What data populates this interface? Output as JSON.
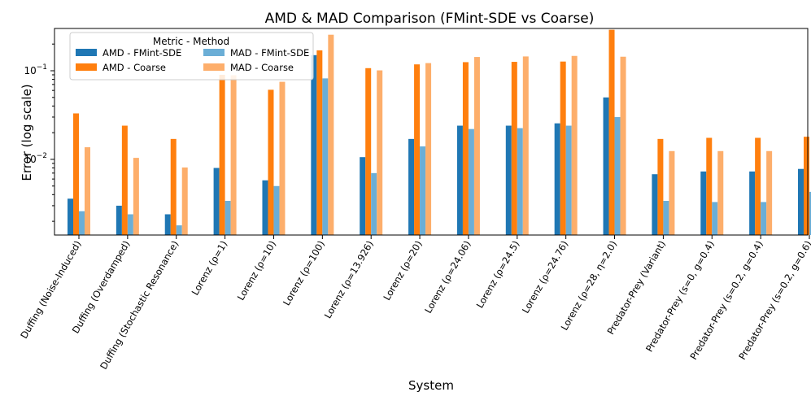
{
  "chart_data": {
    "type": "bar",
    "title": "AMD & MAD Comparison (FMint-SDE vs Coarse)",
    "xlabel": "System",
    "ylabel": "Error (log scale)",
    "yscale": "log",
    "ylim": [
      0.0014,
      0.3
    ],
    "grid": false,
    "legend": {
      "title": "Metric - Method",
      "position": "top-left",
      "columns": 2
    },
    "y_ticks": [
      {
        "value": 0.01,
        "base": "10",
        "exp": "−2"
      },
      {
        "value": 0.1,
        "base": "10",
        "exp": "−1"
      }
    ],
    "categories": [
      "Duffing (Noise-Induced)",
      "Duffing (Overdamped)",
      "Duffing (Stochastic Resonance)",
      "Lorenz (ρ=1)",
      "Lorenz (ρ=10)",
      "Lorenz (ρ=100)",
      "Lorenz (ρ=13.926)",
      "Lorenz (ρ=20)",
      "Lorenz (ρ=24.06)",
      "Lorenz (ρ=24.5)",
      "Lorenz (ρ=24.76)",
      "Lorenz (ρ=28, η=2.0)",
      "Predator-Prey (Variant)",
      "Predator-Prey (s=0, g=0.4)",
      "Predator-Prey (s=0.2, g=0.4)",
      "Predator-Prey (s=0.2, g=0.6)"
    ],
    "series": [
      {
        "name": "AMD - FMint-SDE",
        "color": "#1f77b4",
        "values": [
          0.0036,
          0.003,
          0.0024,
          0.008,
          0.0058,
          0.15,
          0.0106,
          0.017,
          0.024,
          0.024,
          0.0255,
          0.05,
          0.0068,
          0.0073,
          0.0073,
          0.0078
        ]
      },
      {
        "name": "AMD - Coarse",
        "color": "#ff7f0e",
        "values": [
          0.033,
          0.024,
          0.017,
          0.09,
          0.061,
          0.17,
          0.107,
          0.118,
          0.125,
          0.126,
          0.127,
          0.29,
          0.017,
          0.0175,
          0.0175,
          0.018
        ]
      },
      {
        "name": "MAD - FMint-SDE",
        "color": "#6baed6",
        "values": [
          0.0026,
          0.0024,
          0.0018,
          0.0034,
          0.005,
          0.082,
          0.007,
          0.014,
          0.022,
          0.0225,
          0.024,
          0.03,
          0.0034,
          0.0033,
          0.0033,
          0.0043
        ]
      },
      {
        "name": "MAD - Coarse",
        "color": "#fdae6b",
        "values": [
          0.0137,
          0.0104,
          0.0081,
          0.089,
          0.075,
          0.255,
          0.101,
          0.122,
          0.143,
          0.145,
          0.147,
          0.144,
          0.0124,
          0.0124,
          0.0124,
          0.0137
        ]
      }
    ]
  }
}
